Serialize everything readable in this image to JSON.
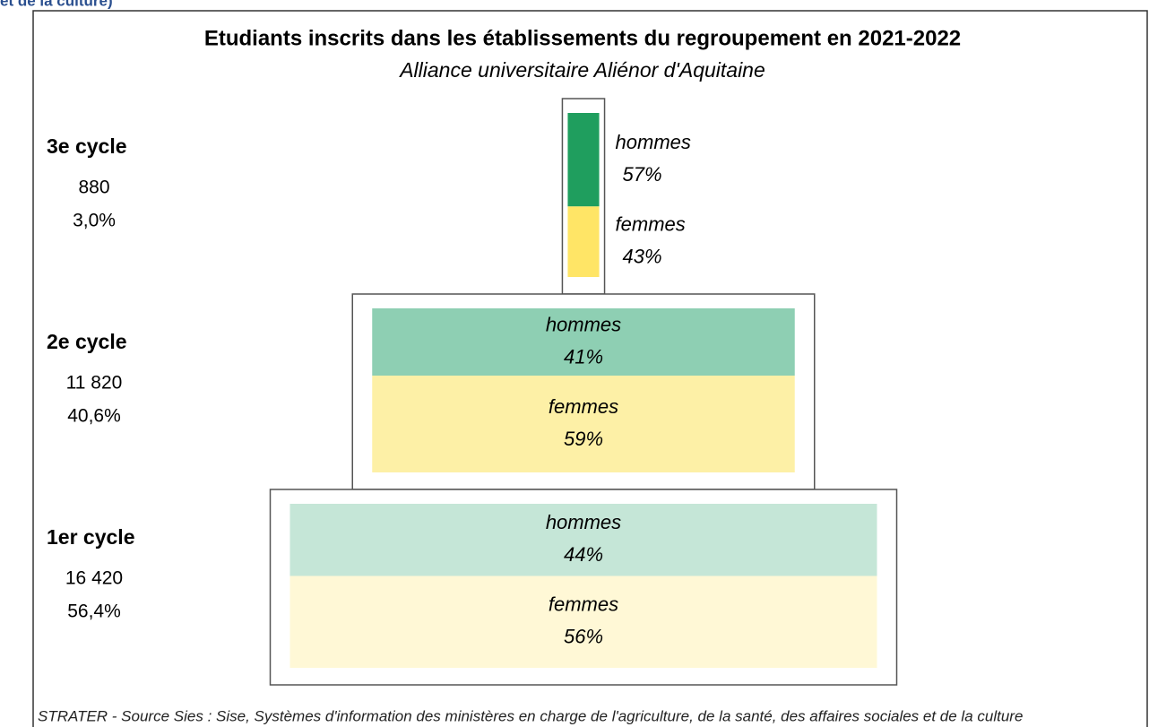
{
  "chart_data": {
    "type": "pyramid",
    "header_fragment": "et de la culture)",
    "title": "Etudiants inscrits dans les établissements du regroupement en 2021-2022",
    "subtitle": "Alliance universitaire Aliénor d'Aquitaine",
    "source": "STRATER - Source Sies : Sise, Systèmes d'information des ministères en charge de l'agriculture, de la santé, des affaires sociales et de la culture",
    "categories": [
      "3e cycle",
      "2e cycle",
      "1er cycle"
    ],
    "counts": [
      880,
      11820,
      16420
    ],
    "count_labels": [
      "880",
      "11 820",
      "16 420"
    ],
    "shares": [
      3.0,
      40.6,
      56.4
    ],
    "share_labels": [
      "3,0%",
      "40,6%",
      "56,4%"
    ],
    "series": [
      {
        "name": "hommes",
        "colors": [
          "#1f9e5e",
          "#8ecfb3",
          "#c5e6d7"
        ],
        "values": [
          57,
          41,
          44
        ],
        "value_labels": [
          "57%",
          "41%",
          "44%"
        ]
      },
      {
        "name": "femmes",
        "colors": [
          "#ffe566",
          "#fdf0a6",
          "#fff8d6"
        ],
        "values": [
          43,
          59,
          56
        ],
        "value_labels": [
          "43%",
          "59%",
          "56%"
        ]
      }
    ]
  }
}
